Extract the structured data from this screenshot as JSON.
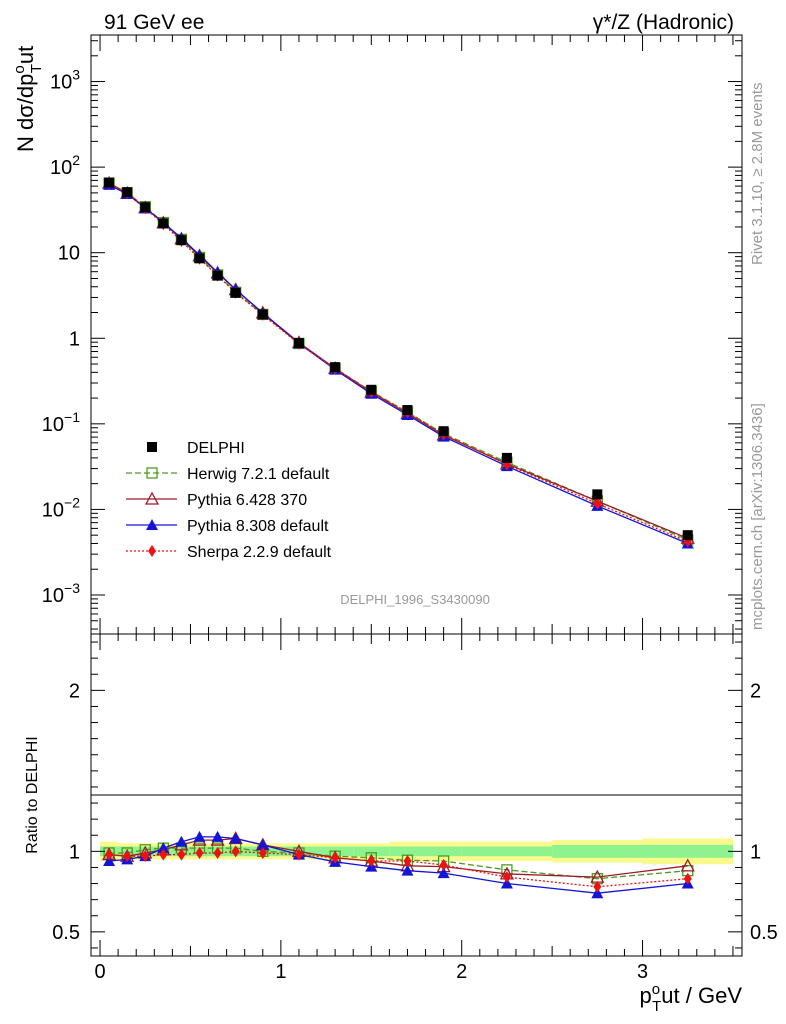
{
  "header": {
    "left": "91 GeV ee",
    "right": "γ*/Z (Hadronic)"
  },
  "side": {
    "rivet": "Rivet 3.1.10, ≥ 2.8M events",
    "mcplots": "mcplots.cern.ch [arXiv:1306.3436]"
  },
  "watermark": "DELPHI_1996_S3430090",
  "chart_data": [
    {
      "type": "line",
      "panel": "main",
      "ylabel": "N dσ/dp",
      "ylabel_sup": "o",
      "ylabel_sub": "T",
      "ylabel_tail": "ut",
      "yscale": "log",
      "ylim": [
        0.00035,
        3500
      ],
      "xlim": [
        -0.05,
        3.55
      ],
      "y_ticks": [
        {
          "v": 0.001,
          "base": "10",
          "exp": "−3"
        },
        {
          "v": 0.01,
          "base": "10",
          "exp": "−2"
        },
        {
          "v": 0.1,
          "base": "10",
          "exp": "−1"
        },
        {
          "v": 1,
          "base": "1",
          "exp": ""
        },
        {
          "v": 10,
          "base": "10",
          "exp": ""
        },
        {
          "v": 100,
          "base": "10",
          "exp": "2"
        },
        {
          "v": 1000,
          "base": "10",
          "exp": "3"
        }
      ],
      "legend_position": "lower-left",
      "x": [
        0.05,
        0.15,
        0.25,
        0.35,
        0.45,
        0.55,
        0.65,
        0.75,
        0.9,
        1.1,
        1.3,
        1.5,
        1.7,
        1.9,
        2.25,
        2.75,
        3.25
      ],
      "series": [
        {
          "name": "DELPHI",
          "color": "#000000",
          "marker": "square-filled",
          "style": "points",
          "values": [
            66,
            51,
            34,
            22,
            14,
            8.6,
            5.4,
            3.4,
            1.9,
            0.88,
            0.46,
            0.25,
            0.145,
            0.082,
            0.04,
            0.015,
            0.005
          ]
        },
        {
          "name": "Herwig 7.2.1 default",
          "color": "#4d9a1e",
          "marker": "square-open",
          "style": "dashed",
          "values": [
            65,
            50,
            34.5,
            22.5,
            14.3,
            8.8,
            5.5,
            3.45,
            1.9,
            0.87,
            0.445,
            0.24,
            0.137,
            0.077,
            0.0355,
            0.0125,
            0.0044
          ]
        },
        {
          "name": "Pythia 6.428 370",
          "color": "#9b1b2a",
          "marker": "triangle-open",
          "style": "solid",
          "values": [
            65,
            49.5,
            33.5,
            22.3,
            14.5,
            9.2,
            5.8,
            3.7,
            1.98,
            0.89,
            0.445,
            0.235,
            0.132,
            0.074,
            0.034,
            0.0125,
            0.0046
          ]
        },
        {
          "name": "Pythia 8.308 default",
          "color": "#1414d4",
          "marker": "triangle-filled",
          "style": "solid",
          "values": [
            62,
            48.5,
            33,
            22.5,
            14.8,
            9.4,
            5.9,
            3.7,
            1.97,
            0.87,
            0.43,
            0.225,
            0.127,
            0.071,
            0.032,
            0.011,
            0.004
          ]
        },
        {
          "name": "Sherpa 2.2.9 default",
          "color": "#ee1111",
          "marker": "diamond-filled",
          "style": "dotted",
          "values": [
            65,
            49.5,
            33,
            21.5,
            13.7,
            8.5,
            5.4,
            3.4,
            1.88,
            0.86,
            0.44,
            0.235,
            0.136,
            0.075,
            0.0335,
            0.0117,
            0.0042
          ]
        }
      ]
    },
    {
      "type": "line",
      "panel": "ratio",
      "ylabel": "Ratio to DELPHI",
      "xlabel": "ut / GeV",
      "xlabel_sup": "o",
      "xlabel_sub": "T",
      "xlabel_base": "p",
      "ylim": [
        0.35,
        2.35
      ],
      "xlim": [
        -0.05,
        3.55
      ],
      "y_ticks": [
        {
          "v": 0.5,
          "label": "0.5"
        },
        {
          "v": 1,
          "label": "1"
        },
        {
          "v": 2,
          "label": "2"
        }
      ],
      "x_ticks": [
        {
          "v": 0,
          "label": "0"
        },
        {
          "v": 1,
          "label": "1"
        },
        {
          "v": 2,
          "label": "2"
        },
        {
          "v": 3,
          "label": "3"
        }
      ],
      "uncertainty_bands": {
        "edges": [
          0,
          0.1,
          0.2,
          0.3,
          0.4,
          0.5,
          0.6,
          0.7,
          0.8,
          1.0,
          1.2,
          1.4,
          1.6,
          1.8,
          2.0,
          2.5,
          3.0,
          3.5
        ],
        "stat": [
          0.03,
          0.03,
          0.03,
          0.03,
          0.03,
          0.03,
          0.03,
          0.03,
          0.03,
          0.03,
          0.03,
          0.03,
          0.03,
          0.03,
          0.03,
          0.04,
          0.04
        ],
        "total": [
          0.06,
          0.05,
          0.05,
          0.05,
          0.05,
          0.05,
          0.05,
          0.05,
          0.05,
          0.05,
          0.05,
          0.05,
          0.06,
          0.06,
          0.06,
          0.07,
          0.08
        ],
        "stat_color": "#8ef28e",
        "total_color": "#fafa8c"
      },
      "x": [
        0.05,
        0.15,
        0.25,
        0.35,
        0.45,
        0.55,
        0.65,
        0.75,
        0.9,
        1.1,
        1.3,
        1.5,
        1.7,
        1.9,
        2.25,
        2.75,
        3.25
      ],
      "series": [
        {
          "name": "Herwig 7.2.1 default",
          "values": [
            0.99,
            0.99,
            1.01,
            1.02,
            1.02,
            1.02,
            1.02,
            1.02,
            1.0,
            0.99,
            0.97,
            0.96,
            0.945,
            0.94,
            0.885,
            0.83,
            0.88
          ]
        },
        {
          "name": "Pythia 6.428 370",
          "values": [
            0.98,
            0.97,
            0.99,
            1.01,
            1.04,
            1.07,
            1.07,
            1.08,
            1.04,
            1.0,
            0.96,
            0.94,
            0.91,
            0.905,
            0.86,
            0.84,
            0.91
          ]
        },
        {
          "name": "Pythia 8.308 default",
          "values": [
            0.94,
            0.95,
            0.97,
            1.02,
            1.06,
            1.09,
            1.09,
            1.08,
            1.04,
            0.98,
            0.935,
            0.905,
            0.88,
            0.865,
            0.8,
            0.74,
            0.8
          ]
        },
        {
          "name": "Sherpa 2.2.9 default",
          "values": [
            0.98,
            0.97,
            0.97,
            0.98,
            0.98,
            0.99,
            0.99,
            1.0,
            0.99,
            0.98,
            0.96,
            0.94,
            0.94,
            0.915,
            0.84,
            0.78,
            0.83
          ]
        }
      ]
    }
  ]
}
